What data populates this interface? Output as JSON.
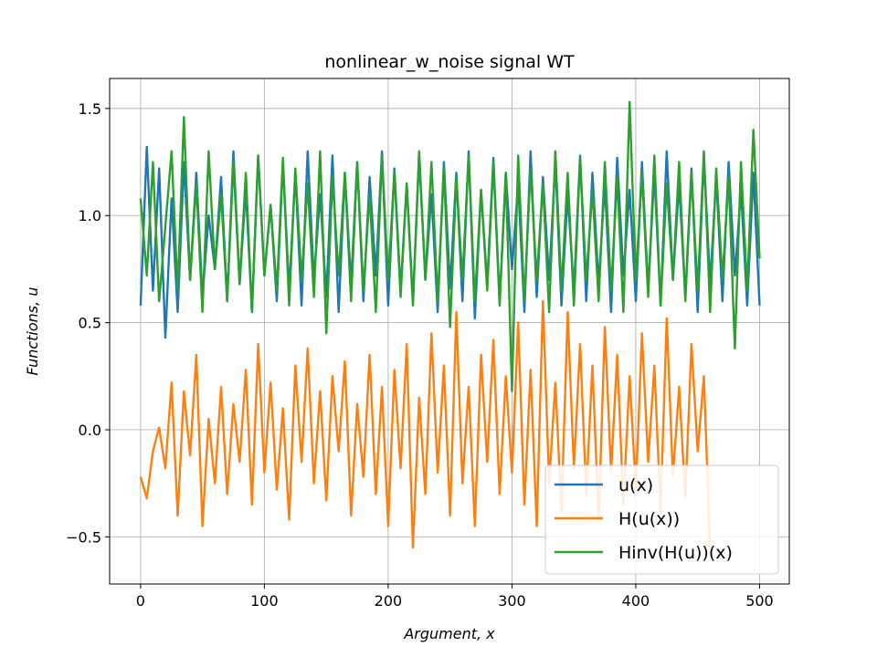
{
  "chart_data": {
    "type": "line",
    "title": "nonlinear_w_noise signal WT",
    "xlabel": "Argument, x",
    "ylabel": "Functions, u",
    "xlim": [
      -25,
      524
    ],
    "ylim": [
      -0.72,
      1.64
    ],
    "xticks": [
      0,
      100,
      200,
      300,
      400,
      500
    ],
    "yticks": [
      -0.5,
      0.0,
      0.5,
      1.0,
      1.5
    ],
    "xtick_labels": [
      "0",
      "100",
      "200",
      "300",
      "400",
      "500"
    ],
    "ytick_labels": [
      "−0.5",
      "0.0",
      "0.5",
      "1.0",
      "1.5"
    ],
    "grid": true,
    "legend_position": "lower-right",
    "series": [
      {
        "name": "u(x)",
        "color": "#1f77b4",
        "x_start": 0,
        "x_step": 5,
        "values": [
          0.58,
          1.32,
          0.65,
          1.22,
          0.43,
          1.08,
          0.55,
          1.25,
          0.7,
          1.2,
          0.62,
          1.0,
          0.75,
          1.18,
          0.6,
          1.3,
          0.68,
          1.12,
          0.55,
          1.28,
          0.72,
          1.05,
          0.6,
          1.25,
          0.65,
          1.2,
          0.58,
          1.3,
          0.7,
          1.1,
          0.62,
          1.28,
          0.55,
          1.2,
          0.68,
          1.25,
          0.6,
          1.18,
          0.72,
          1.3,
          0.58,
          1.22,
          0.65,
          1.15,
          0.6,
          1.28,
          0.7,
          1.1,
          0.55,
          1.25,
          0.66,
          1.2,
          0.6,
          1.3,
          0.52,
          1.12,
          0.68,
          1.27,
          0.6,
          1.2,
          0.75,
          1.15,
          0.55,
          1.3,
          0.62,
          1.18,
          0.7,
          1.25,
          0.58,
          1.1,
          0.65,
          1.28,
          0.6,
          1.2,
          0.68,
          1.15,
          0.55,
          1.27,
          0.72,
          1.12,
          0.6,
          1.25,
          0.65,
          1.2,
          0.58,
          1.3,
          0.7,
          1.15,
          0.62,
          1.22,
          0.55,
          1.28,
          0.68,
          1.18,
          0.6,
          1.25,
          0.72,
          1.12,
          0.58,
          1.2,
          0.58
        ]
      },
      {
        "name": "H(u(x))",
        "color": "#ff7f0e",
        "x_start": 0,
        "x_step": 5,
        "values": [
          -0.22,
          -0.32,
          -0.1,
          0.01,
          -0.18,
          0.22,
          -0.4,
          0.18,
          -0.12,
          0.35,
          -0.45,
          0.05,
          -0.25,
          0.2,
          -0.3,
          0.12,
          -0.15,
          0.28,
          -0.35,
          0.4,
          -0.2,
          0.22,
          -0.28,
          0.1,
          -0.42,
          0.3,
          -0.15,
          0.38,
          -0.25,
          0.18,
          -0.33,
          0.25,
          -0.1,
          0.32,
          -0.4,
          0.12,
          -0.22,
          0.35,
          -0.3,
          0.2,
          -0.45,
          0.28,
          -0.18,
          0.4,
          -0.55,
          0.15,
          -0.3,
          0.45,
          -0.2,
          0.3,
          -0.4,
          0.55,
          -0.25,
          0.2,
          -0.45,
          0.35,
          -0.15,
          0.42,
          -0.3,
          0.25,
          -0.2,
          0.5,
          -0.35,
          0.28,
          -0.45,
          0.6,
          -0.25,
          0.22,
          -0.38,
          0.55,
          -0.18,
          0.4,
          -0.3,
          0.3,
          -0.42,
          0.48,
          -0.2,
          0.35,
          -0.35,
          0.25,
          -0.28,
          0.45,
          -0.15,
          0.3,
          -0.38,
          0.52,
          -0.22,
          0.2,
          -0.32,
          0.4,
          -0.1,
          0.25,
          -0.56
        ]
      },
      {
        "name": "Hinv(H(u))(x)",
        "color": "#2ca02c",
        "x_start": 0,
        "x_step": 5,
        "values": [
          1.08,
          0.72,
          1.25,
          0.6,
          0.95,
          1.3,
          0.65,
          1.46,
          0.7,
          1.15,
          0.55,
          1.3,
          0.75,
          1.1,
          0.6,
          1.25,
          0.68,
          1.2,
          0.55,
          1.28,
          0.72,
          1.05,
          0.65,
          1.27,
          0.58,
          1.22,
          0.7,
          1.15,
          0.62,
          1.3,
          0.45,
          1.18,
          0.72,
          1.2,
          0.6,
          1.25,
          0.65,
          1.1,
          0.55,
          1.28,
          0.7,
          1.2,
          0.62,
          1.15,
          0.58,
          1.3,
          0.7,
          1.25,
          0.6,
          1.22,
          0.48,
          1.18,
          0.7,
          1.28,
          0.6,
          1.12,
          0.65,
          1.25,
          0.58,
          1.2,
          0.18,
          1.28,
          0.6,
          1.22,
          0.7,
          1.15,
          0.55,
          1.3,
          0.65,
          1.2,
          0.58,
          1.27,
          0.7,
          1.12,
          0.6,
          1.25,
          0.65,
          1.18,
          0.55,
          1.53,
          0.7,
          1.2,
          0.62,
          1.28,
          0.58,
          1.15,
          0.7,
          1.25,
          0.6,
          1.2,
          0.65,
          1.3,
          0.55,
          1.22,
          0.7,
          1.18,
          0.38,
          1.25,
          0.65,
          1.4,
          0.8
        ]
      }
    ]
  }
}
